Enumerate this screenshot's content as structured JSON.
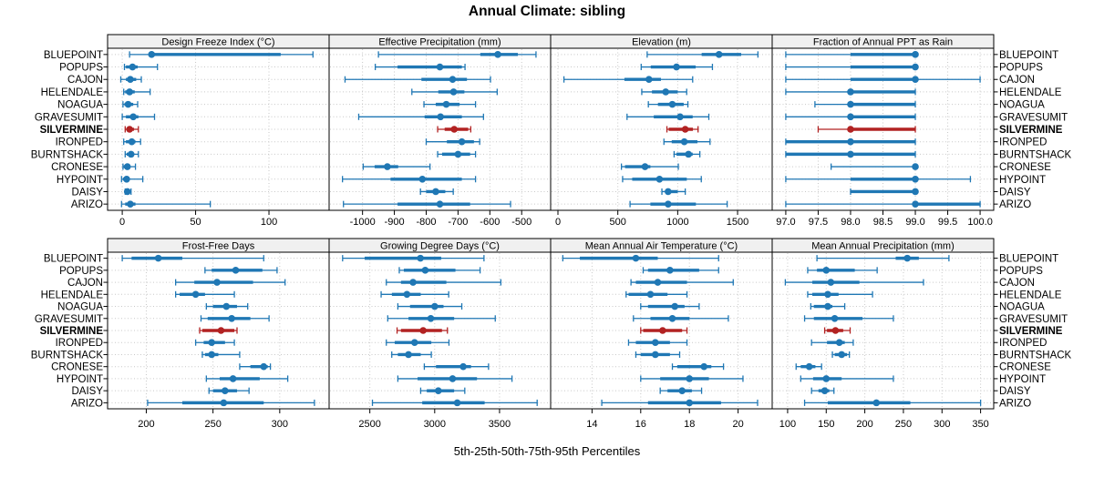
{
  "title": "Annual Climate: sibling",
  "caption": "5th-25th-50th-75th-95th Percentiles",
  "colors": {
    "series": "#1f77b4",
    "highlight": "#b22222",
    "strip_bg": "#f0f0f0",
    "panel_border": "#000000",
    "grid": "#c8c8c8"
  },
  "chart_data": {
    "type": "dotplot",
    "subtype": "trellis-percentile-intervals",
    "percentile_labels": [
      "5th",
      "25th",
      "50th",
      "75th",
      "95th"
    ],
    "legend_position": "none",
    "grid": "dotted",
    "sites": [
      "BLUEPOINT",
      "POPUPS",
      "CAJON",
      "HELENDALE",
      "NOAGUA",
      "GRAVESUMIT",
      "SILVERMINE",
      "IRONPED",
      "BURNTSHACK",
      "CRONESE",
      "HYPOINT",
      "DAISY",
      "ARIZO"
    ],
    "highlight_site": "SILVERMINE",
    "panels": [
      {
        "title": "Design Freeze Index (°C)",
        "ticks": [
          0,
          50,
          100
        ],
        "tick_labels": [
          "0",
          "50",
          "100"
        ],
        "xlim": [
          -10,
          141
        ],
        "series": [
          [
            5,
            18,
            20,
            108,
            130
          ],
          [
            1.5,
            2.5,
            7,
            10.5,
            24
          ],
          [
            -1,
            2.5,
            5.5,
            9.5,
            13
          ],
          [
            1,
            2,
            5,
            8.5,
            19
          ],
          [
            0.5,
            1.5,
            4,
            7.5,
            10.5
          ],
          [
            0,
            2.5,
            7.5,
            11,
            22
          ],
          [
            2,
            3,
            5,
            8,
            11
          ],
          [
            1,
            2.5,
            6.5,
            9,
            12.5
          ],
          [
            2,
            3,
            6,
            8,
            11
          ],
          [
            0.5,
            1,
            3.5,
            5,
            9
          ],
          [
            -0.5,
            0.5,
            3,
            4.5,
            14
          ],
          [
            2,
            2.5,
            3.5,
            5,
            6
          ],
          [
            -0.5,
            2,
            5.5,
            9,
            60
          ]
        ]
      },
      {
        "title": "Effective Precipitation (mm)",
        "ticks": [
          -1000,
          -900,
          -800,
          -700,
          -600,
          -500
        ],
        "tick_labels": [
          "-1000",
          "-900",
          "-800",
          "-700",
          "-600",
          "-500"
        ],
        "xlim": [
          -1105,
          -409
        ],
        "series": [
          [
            -950,
            -630,
            -575,
            -512,
            -455
          ],
          [
            -960,
            -890,
            -757,
            -688,
            -678
          ],
          [
            -1055,
            -815,
            -717,
            -672,
            -598
          ],
          [
            -845,
            -762,
            -714,
            -680,
            -577
          ],
          [
            -807,
            -770,
            -737,
            -695,
            -645
          ],
          [
            -1012,
            -805,
            -755,
            -688,
            -620
          ],
          [
            -764,
            -742,
            -712,
            -668,
            -660
          ],
          [
            -800,
            -735,
            -688,
            -650,
            -632
          ],
          [
            -764,
            -750,
            -700,
            -662,
            -645
          ],
          [
            -998,
            -962,
            -922,
            -888,
            -788
          ],
          [
            -1063,
            -912,
            -812,
            -688,
            -645
          ],
          [
            -818,
            -800,
            -770,
            -740,
            -715
          ],
          [
            -1060,
            -890,
            -757,
            -662,
            -535
          ]
        ]
      },
      {
        "title": "Elevation (m)",
        "ticks": [
          0,
          500,
          1000,
          1500
        ],
        "tick_labels": [
          "0",
          "500",
          "1000",
          "1500"
        ],
        "xlim": [
          -61,
          1789
        ],
        "series": [
          [
            745,
            1200,
            1345,
            1530,
            1670
          ],
          [
            695,
            775,
            990,
            1150,
            1290
          ],
          [
            50,
            555,
            760,
            860,
            1125
          ],
          [
            700,
            785,
            900,
            1000,
            1075
          ],
          [
            755,
            835,
            955,
            1050,
            1085
          ],
          [
            577,
            800,
            1020,
            1125,
            1260
          ],
          [
            910,
            925,
            1063,
            1127,
            1170
          ],
          [
            885,
            950,
            1055,
            1165,
            1270
          ],
          [
            970,
            990,
            1090,
            1125,
            1185
          ],
          [
            530,
            560,
            727,
            772,
            1005
          ],
          [
            540,
            620,
            848,
            1076,
            1197
          ],
          [
            868,
            900,
            920,
            1000,
            1063
          ],
          [
            602,
            772,
            920,
            1152,
            1413
          ]
        ]
      },
      {
        "title": "Fraction of Annual PPT as Rain",
        "ticks": [
          97.0,
          97.5,
          98.0,
          98.5,
          99.0,
          99.5,
          100.0
        ],
        "tick_labels": [
          "97.0",
          "97.5",
          "98.0",
          "98.5",
          "99.0",
          "99.5",
          "100.0"
        ],
        "xlim": [
          96.79,
          100.21
        ],
        "series": [
          [
            97,
            98,
            99,
            99,
            99
          ],
          [
            97,
            98,
            99,
            99,
            99
          ],
          [
            97,
            98,
            99,
            99,
            100
          ],
          [
            97,
            98,
            98,
            99,
            99
          ],
          [
            97.45,
            98,
            98,
            99,
            99
          ],
          [
            97,
            98,
            98,
            99,
            99
          ],
          [
            97.5,
            98,
            98,
            99,
            99
          ],
          [
            97,
            97,
            98,
            99,
            99
          ],
          [
            97,
            97,
            98,
            99,
            99
          ],
          [
            97.7,
            99,
            99,
            99,
            99
          ],
          [
            97,
            98,
            99,
            99,
            99.85
          ],
          [
            98,
            98,
            99,
            99,
            99
          ],
          [
            97,
            99,
            99,
            100,
            100
          ]
        ]
      },
      {
        "title": "Frost-Free Days",
        "ticks": [
          200,
          250,
          300
        ],
        "tick_labels": [
          "200",
          "250",
          "300"
        ],
        "xlim": [
          171,
          337
        ],
        "series": [
          [
            182,
            189,
            209,
            227,
            288
          ],
          [
            244,
            249,
            267,
            287,
            298
          ],
          [
            222,
            236,
            253,
            280,
            304
          ],
          [
            222,
            225,
            237,
            244,
            266
          ],
          [
            245,
            250,
            260,
            268,
            276
          ],
          [
            241,
            246,
            264,
            278,
            292
          ],
          [
            240,
            242,
            256,
            266,
            268
          ],
          [
            237,
            243,
            249,
            259,
            266
          ],
          [
            242,
            244,
            249,
            254,
            270
          ],
          [
            270,
            278,
            288,
            291,
            293
          ],
          [
            245,
            255,
            265,
            285,
            306
          ],
          [
            247,
            250,
            259,
            268,
            277
          ],
          [
            201,
            227,
            258,
            288,
            326
          ]
        ]
      },
      {
        "title": "Growing Degree Days (°C)",
        "ticks": [
          2500,
          3000,
          3500
        ],
        "tick_labels": [
          "2500",
          "3000",
          "3500"
        ],
        "xlim": [
          2186,
          3894
        ],
        "series": [
          [
            2290,
            2460,
            2890,
            3050,
            3380
          ],
          [
            2727,
            2762,
            2927,
            3160,
            3350
          ],
          [
            2627,
            2740,
            2833,
            3090,
            3510
          ],
          [
            2587,
            2670,
            2786,
            2892,
            3108
          ],
          [
            2716,
            2810,
            3000,
            3068,
            3209
          ],
          [
            2638,
            2798,
            2970,
            3150,
            3467
          ],
          [
            2710,
            2740,
            2911,
            3056,
            3098
          ],
          [
            2627,
            2692,
            2845,
            2974,
            3110
          ],
          [
            2669,
            2716,
            2798,
            2892,
            2974
          ],
          [
            2920,
            3010,
            3220,
            3280,
            3415
          ],
          [
            2716,
            2868,
            3138,
            3326,
            3596
          ],
          [
            2892,
            2939,
            3028,
            3150,
            3232
          ],
          [
            2520,
            2904,
            3174,
            3385,
            3790
          ]
        ]
      },
      {
        "title": "Mean Annual Air Temperature (°C)",
        "ticks": [
          14,
          16,
          18,
          20
        ],
        "tick_labels": [
          "14",
          "16",
          "18",
          "20"
        ],
        "xlim": [
          12.3,
          21.4
        ],
        "series": [
          [
            12.8,
            13.5,
            15.8,
            16.7,
            19.2
          ],
          [
            16.1,
            16.3,
            17.2,
            18.4,
            19.2
          ],
          [
            15.6,
            15.8,
            16.7,
            17.9,
            19.8
          ],
          [
            15.4,
            15.5,
            16.4,
            17.1,
            17.9
          ],
          [
            16.0,
            16.3,
            17.4,
            17.8,
            18.4
          ],
          [
            15.7,
            16.4,
            17.3,
            18.0,
            19.6
          ],
          [
            16.0,
            16.1,
            16.9,
            17.7,
            17.9
          ],
          [
            15.5,
            15.8,
            16.6,
            17.2,
            17.9
          ],
          [
            15.8,
            16.0,
            16.6,
            17.2,
            17.6
          ],
          [
            17.3,
            17.5,
            18.6,
            18.9,
            19.4
          ],
          [
            16.0,
            16.8,
            18.0,
            18.8,
            20.2
          ],
          [
            16.8,
            17.1,
            17.7,
            18.1,
            18.5
          ],
          [
            14.4,
            16.3,
            18.0,
            19.3,
            20.8
          ]
        ]
      },
      {
        "title": "Mean Annual Precipitation (mm)",
        "ticks": [
          100,
          150,
          200,
          250,
          300,
          350
        ],
        "tick_labels": [
          "100",
          "150",
          "200",
          "250",
          "300",
          "350"
        ],
        "xlim": [
          80,
          367
        ],
        "series": [
          [
            138,
            240,
            255,
            270,
            309
          ],
          [
            126,
            138,
            150,
            187,
            216
          ],
          [
            97,
            132,
            156,
            193,
            276
          ],
          [
            126,
            132,
            152,
            166,
            210
          ],
          [
            130,
            134,
            152,
            158,
            174
          ],
          [
            122,
            134,
            161,
            197,
            237
          ],
          [
            148,
            151,
            162,
            172,
            181
          ],
          [
            131,
            151,
            167,
            174,
            185
          ],
          [
            158,
            161,
            170,
            177,
            180
          ],
          [
            111,
            117,
            128,
            136,
            144
          ],
          [
            117,
            133,
            150,
            170,
            237
          ],
          [
            131,
            140,
            148,
            154,
            160
          ],
          [
            122,
            152,
            215,
            259,
            350
          ]
        ]
      }
    ]
  }
}
